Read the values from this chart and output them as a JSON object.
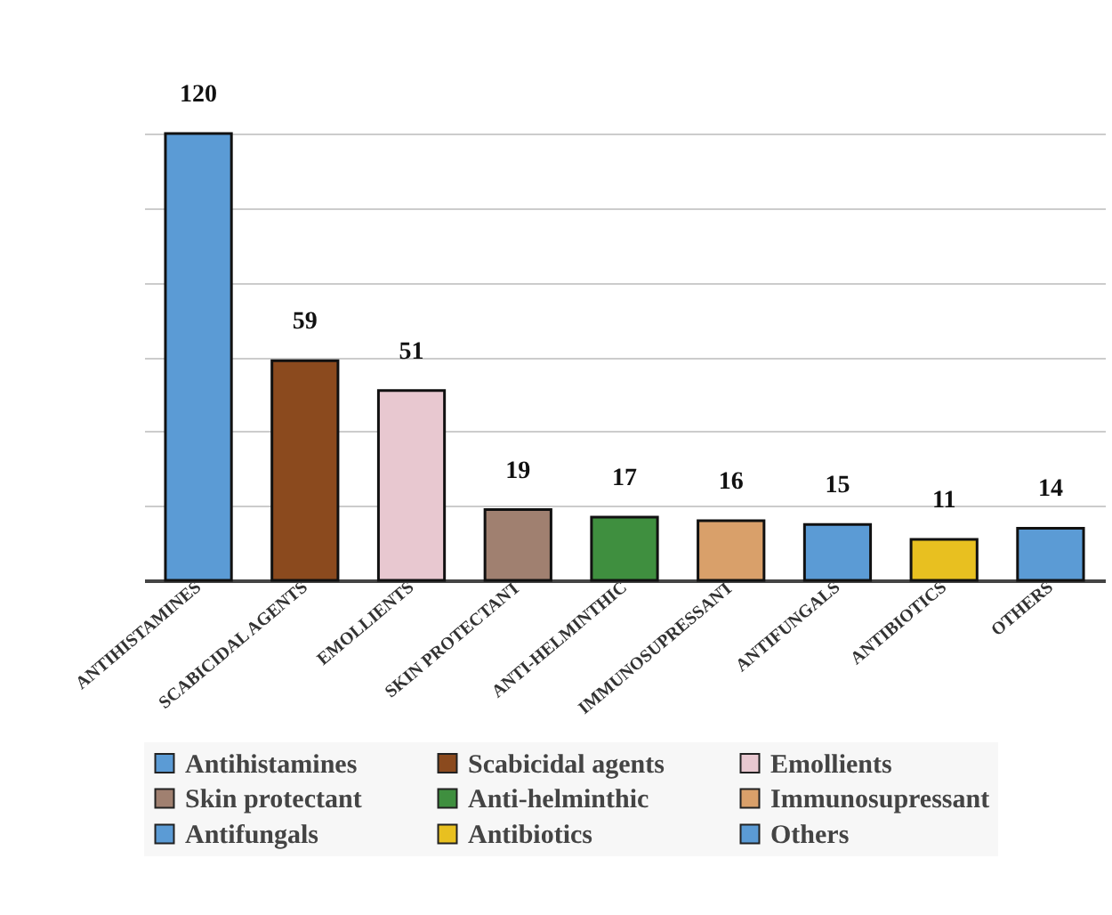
{
  "chart_data": {
    "type": "bar",
    "categories": [
      "ANTIHISTAMINES",
      "SCABICIDAL AGENTS",
      "EMOLLIENTS",
      "SKIN PROTECTANT",
      "ANTI-HELMINTHIC",
      "IMMUNOSUPRESSANT",
      "ANTIFUNGALS",
      "ANTIBIOTICS",
      "OTHERS"
    ],
    "series": [
      {
        "name": "Antihistamines",
        "color": "#5b9bd5",
        "values": [
          120,
          null,
          null,
          null,
          null,
          null,
          null,
          null,
          null
        ]
      },
      {
        "name": "Scabicidal agents",
        "color": "#8b4a1e",
        "values": [
          null,
          59,
          null,
          null,
          null,
          null,
          null,
          null,
          null
        ]
      },
      {
        "name": "Emollients",
        "color": "#e8c8d0",
        "values": [
          null,
          null,
          51,
          null,
          null,
          null,
          null,
          null,
          null
        ]
      },
      {
        "name": "Skin protectant",
        "color": "#a08070",
        "values": [
          null,
          null,
          null,
          19,
          null,
          null,
          null,
          null,
          null
        ]
      },
      {
        "name": "Anti-helminthic",
        "color": "#3f8f3f",
        "values": [
          null,
          null,
          null,
          null,
          17,
          null,
          null,
          null,
          null
        ]
      },
      {
        "name": "Immunosupressant",
        "color": "#d9a06a",
        "values": [
          null,
          null,
          null,
          null,
          null,
          16,
          null,
          null,
          null
        ]
      },
      {
        "name": "Antifungals",
        "color": "#5b9bd5",
        "values": [
          null,
          null,
          null,
          null,
          null,
          null,
          15,
          null,
          null
        ]
      },
      {
        "name": "Antibiotics",
        "color": "#e8c020",
        "values": [
          null,
          null,
          null,
          null,
          null,
          null,
          null,
          11,
          null
        ]
      },
      {
        "name": "Others",
        "color": "#5b9bd5",
        "values": [
          null,
          null,
          null,
          null,
          null,
          null,
          null,
          null,
          14
        ]
      }
    ],
    "ylim": [
      0,
      120
    ],
    "yticks": [
      {
        "value": 0,
        "label": null
      },
      {
        "value": 20,
        "label": null
      },
      {
        "value": 40,
        "label": null
      },
      {
        "value": 60,
        "label": null
      },
      {
        "value": 80,
        "label": null
      },
      {
        "value": 100,
        "label": null
      },
      {
        "value": 120,
        "label": null
      }
    ],
    "tick_labels": "x",
    "grid": "y",
    "legend": "bottom",
    "data_labels": true
  }
}
